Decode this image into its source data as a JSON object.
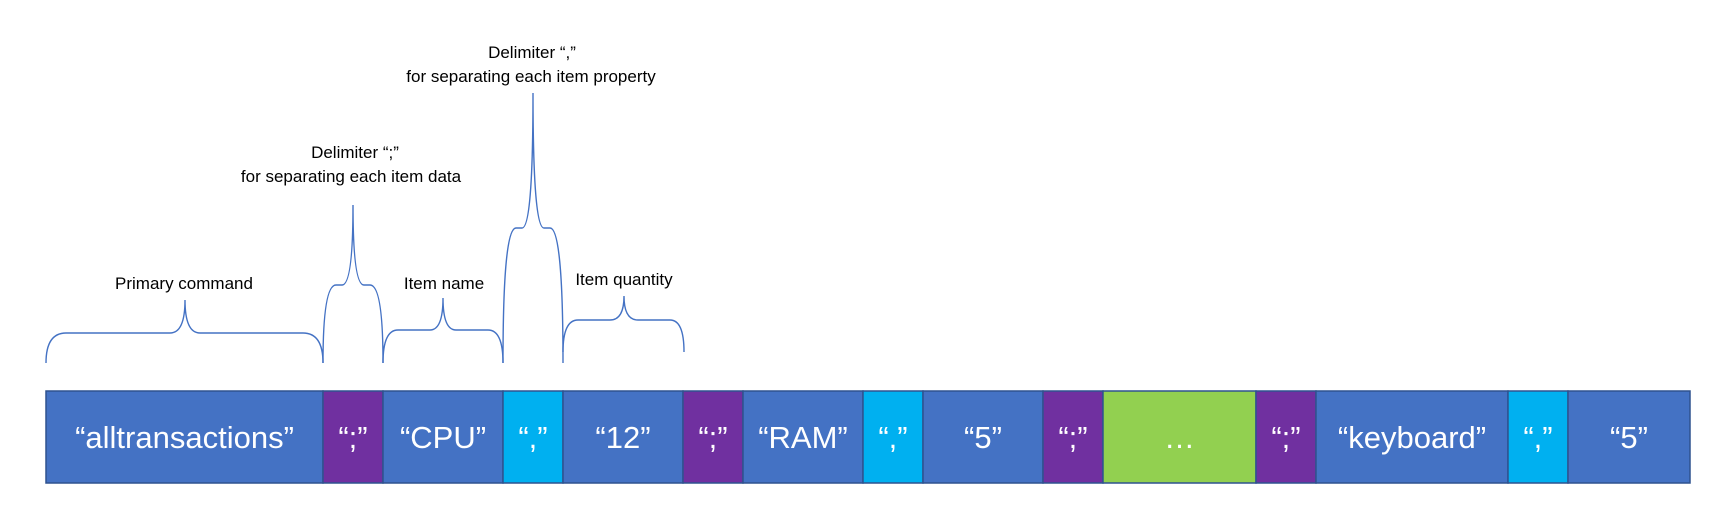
{
  "colors": {
    "blue": "#4472c4",
    "purple": "#7030a0",
    "cyan": "#00b0f0",
    "green": "#92d050",
    "brace": "#4472c4",
    "border": "#2f528f"
  },
  "segments": [
    {
      "label": "“alltransactions”",
      "color": "blue"
    },
    {
      "label": "“;”",
      "color": "purple"
    },
    {
      "label": "“CPU”",
      "color": "blue"
    },
    {
      "label": "“,”",
      "color": "cyan"
    },
    {
      "label": "“12”",
      "color": "blue"
    },
    {
      "label": "“;”",
      "color": "purple"
    },
    {
      "label": "“RAM”",
      "color": "blue"
    },
    {
      "label": "“,”",
      "color": "cyan"
    },
    {
      "label": "“5”",
      "color": "blue"
    },
    {
      "label": "“;”",
      "color": "purple"
    },
    {
      "label": "…",
      "color": "green"
    },
    {
      "label": "“;”",
      "color": "purple"
    },
    {
      "label": "“keyboard”",
      "color": "blue"
    },
    {
      "label": "“,”",
      "color": "cyan"
    },
    {
      "label": "“5”",
      "color": "blue"
    }
  ],
  "annotations": {
    "primary_command": "Primary command",
    "delimiter_semicolon_line1": "Delimiter “;”",
    "delimiter_semicolon_line2": "for separating each item data",
    "item_name": "Item name",
    "delimiter_comma_line1": "Delimiter “,”",
    "delimiter_comma_line2": "for separating each item property",
    "item_quantity": "Item quantity"
  }
}
